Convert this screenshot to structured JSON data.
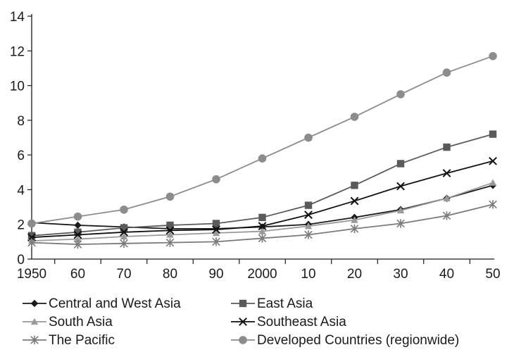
{
  "chart_data": {
    "type": "line",
    "title": "",
    "xlabel": "",
    "ylabel": "",
    "categories": [
      "1950",
      "60",
      "70",
      "80",
      "90",
      "2000",
      "10",
      "20",
      "30",
      "40",
      "50"
    ],
    "ylim": [
      0,
      14
    ],
    "yticks": [
      "0",
      "2",
      "4",
      "6",
      "8",
      "10",
      "12",
      "14"
    ],
    "grid": false,
    "legend_position": "bottom",
    "series": [
      {
        "name": "Central and West Asia",
        "marker": "diamond",
        "color": "#1a1a1a",
        "values": [
          2.1,
          1.95,
          1.85,
          1.75,
          1.75,
          1.85,
          2.0,
          2.4,
          2.85,
          3.5,
          4.25
        ]
      },
      {
        "name": "East Asia",
        "marker": "square",
        "color": "#5a5a5a",
        "values": [
          1.35,
          1.55,
          1.8,
          1.95,
          2.05,
          2.4,
          3.1,
          4.25,
          5.5,
          6.45,
          7.2
        ]
      },
      {
        "name": "South Asia",
        "marker": "triangle",
        "color": "#9a9a9a",
        "values": [
          1.05,
          1.15,
          1.3,
          1.4,
          1.5,
          1.6,
          1.9,
          2.25,
          2.8,
          3.5,
          4.4
        ]
      },
      {
        "name": "Southeast Asia",
        "marker": "x",
        "color": "#111111",
        "values": [
          1.25,
          1.4,
          1.55,
          1.65,
          1.7,
          1.9,
          2.55,
          3.35,
          4.2,
          4.95,
          5.65
        ]
      },
      {
        "name": "The Pacific",
        "marker": "star",
        "color": "#7a7a7a",
        "values": [
          0.95,
          0.85,
          0.9,
          0.95,
          1.0,
          1.2,
          1.4,
          1.75,
          2.05,
          2.5,
          3.15
        ]
      },
      {
        "name": "Developed Countries (regionwide)",
        "marker": "circle",
        "color": "#8c8c8c",
        "values": [
          2.05,
          2.45,
          2.85,
          3.6,
          4.6,
          5.8,
          7.0,
          8.2,
          9.5,
          10.75,
          11.7
        ]
      }
    ]
  }
}
